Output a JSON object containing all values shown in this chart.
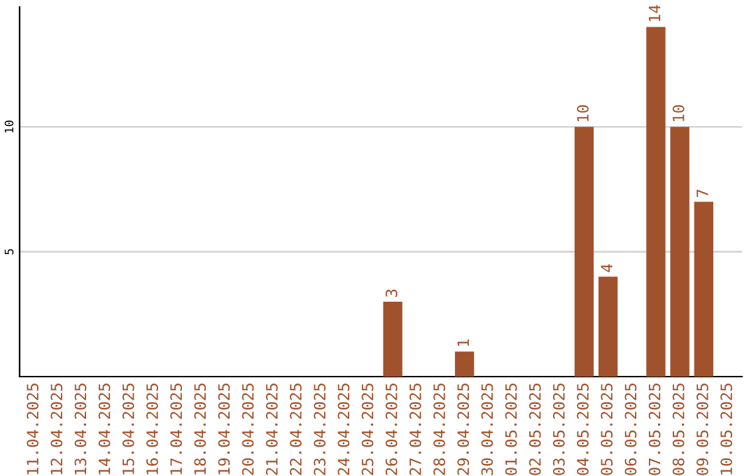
{
  "chart_data": {
    "type": "bar",
    "categories": [
      "11.04.2025",
      "12.04.2025",
      "13.04.2025",
      "14.04.2025",
      "15.04.2025",
      "16.04.2025",
      "17.04.2025",
      "18.04.2025",
      "19.04.2025",
      "20.04.2025",
      "21.04.2025",
      "22.04.2025",
      "23.04.2025",
      "24.04.2025",
      "25.04.2025",
      "26.04.2025",
      "27.04.2025",
      "28.04.2025",
      "29.04.2025",
      "30.04.2025",
      "01.05.2025",
      "02.05.2025",
      "03.05.2025",
      "04.05.2025",
      "05.05.2025",
      "06.05.2025",
      "07.05.2025",
      "08.05.2025",
      "09.05.2025",
      "10.05.2025"
    ],
    "values": [
      0,
      0,
      0,
      0,
      0,
      0,
      0,
      0,
      0,
      0,
      0,
      0,
      0,
      0,
      0,
      3,
      0,
      0,
      1,
      0,
      0,
      0,
      0,
      10,
      4,
      0,
      14,
      10,
      7,
      0
    ],
    "value_labels": [
      null,
      null,
      null,
      null,
      null,
      null,
      null,
      null,
      null,
      null,
      null,
      null,
      null,
      null,
      null,
      "3",
      null,
      null,
      "1",
      null,
      null,
      null,
      null,
      "10",
      "4",
      null,
      "14",
      "10",
      "7",
      null
    ],
    "color": "#a0522d",
    "ylim": [
      0,
      14.8
    ],
    "yticks": [
      5,
      10
    ],
    "grid": "y"
  }
}
